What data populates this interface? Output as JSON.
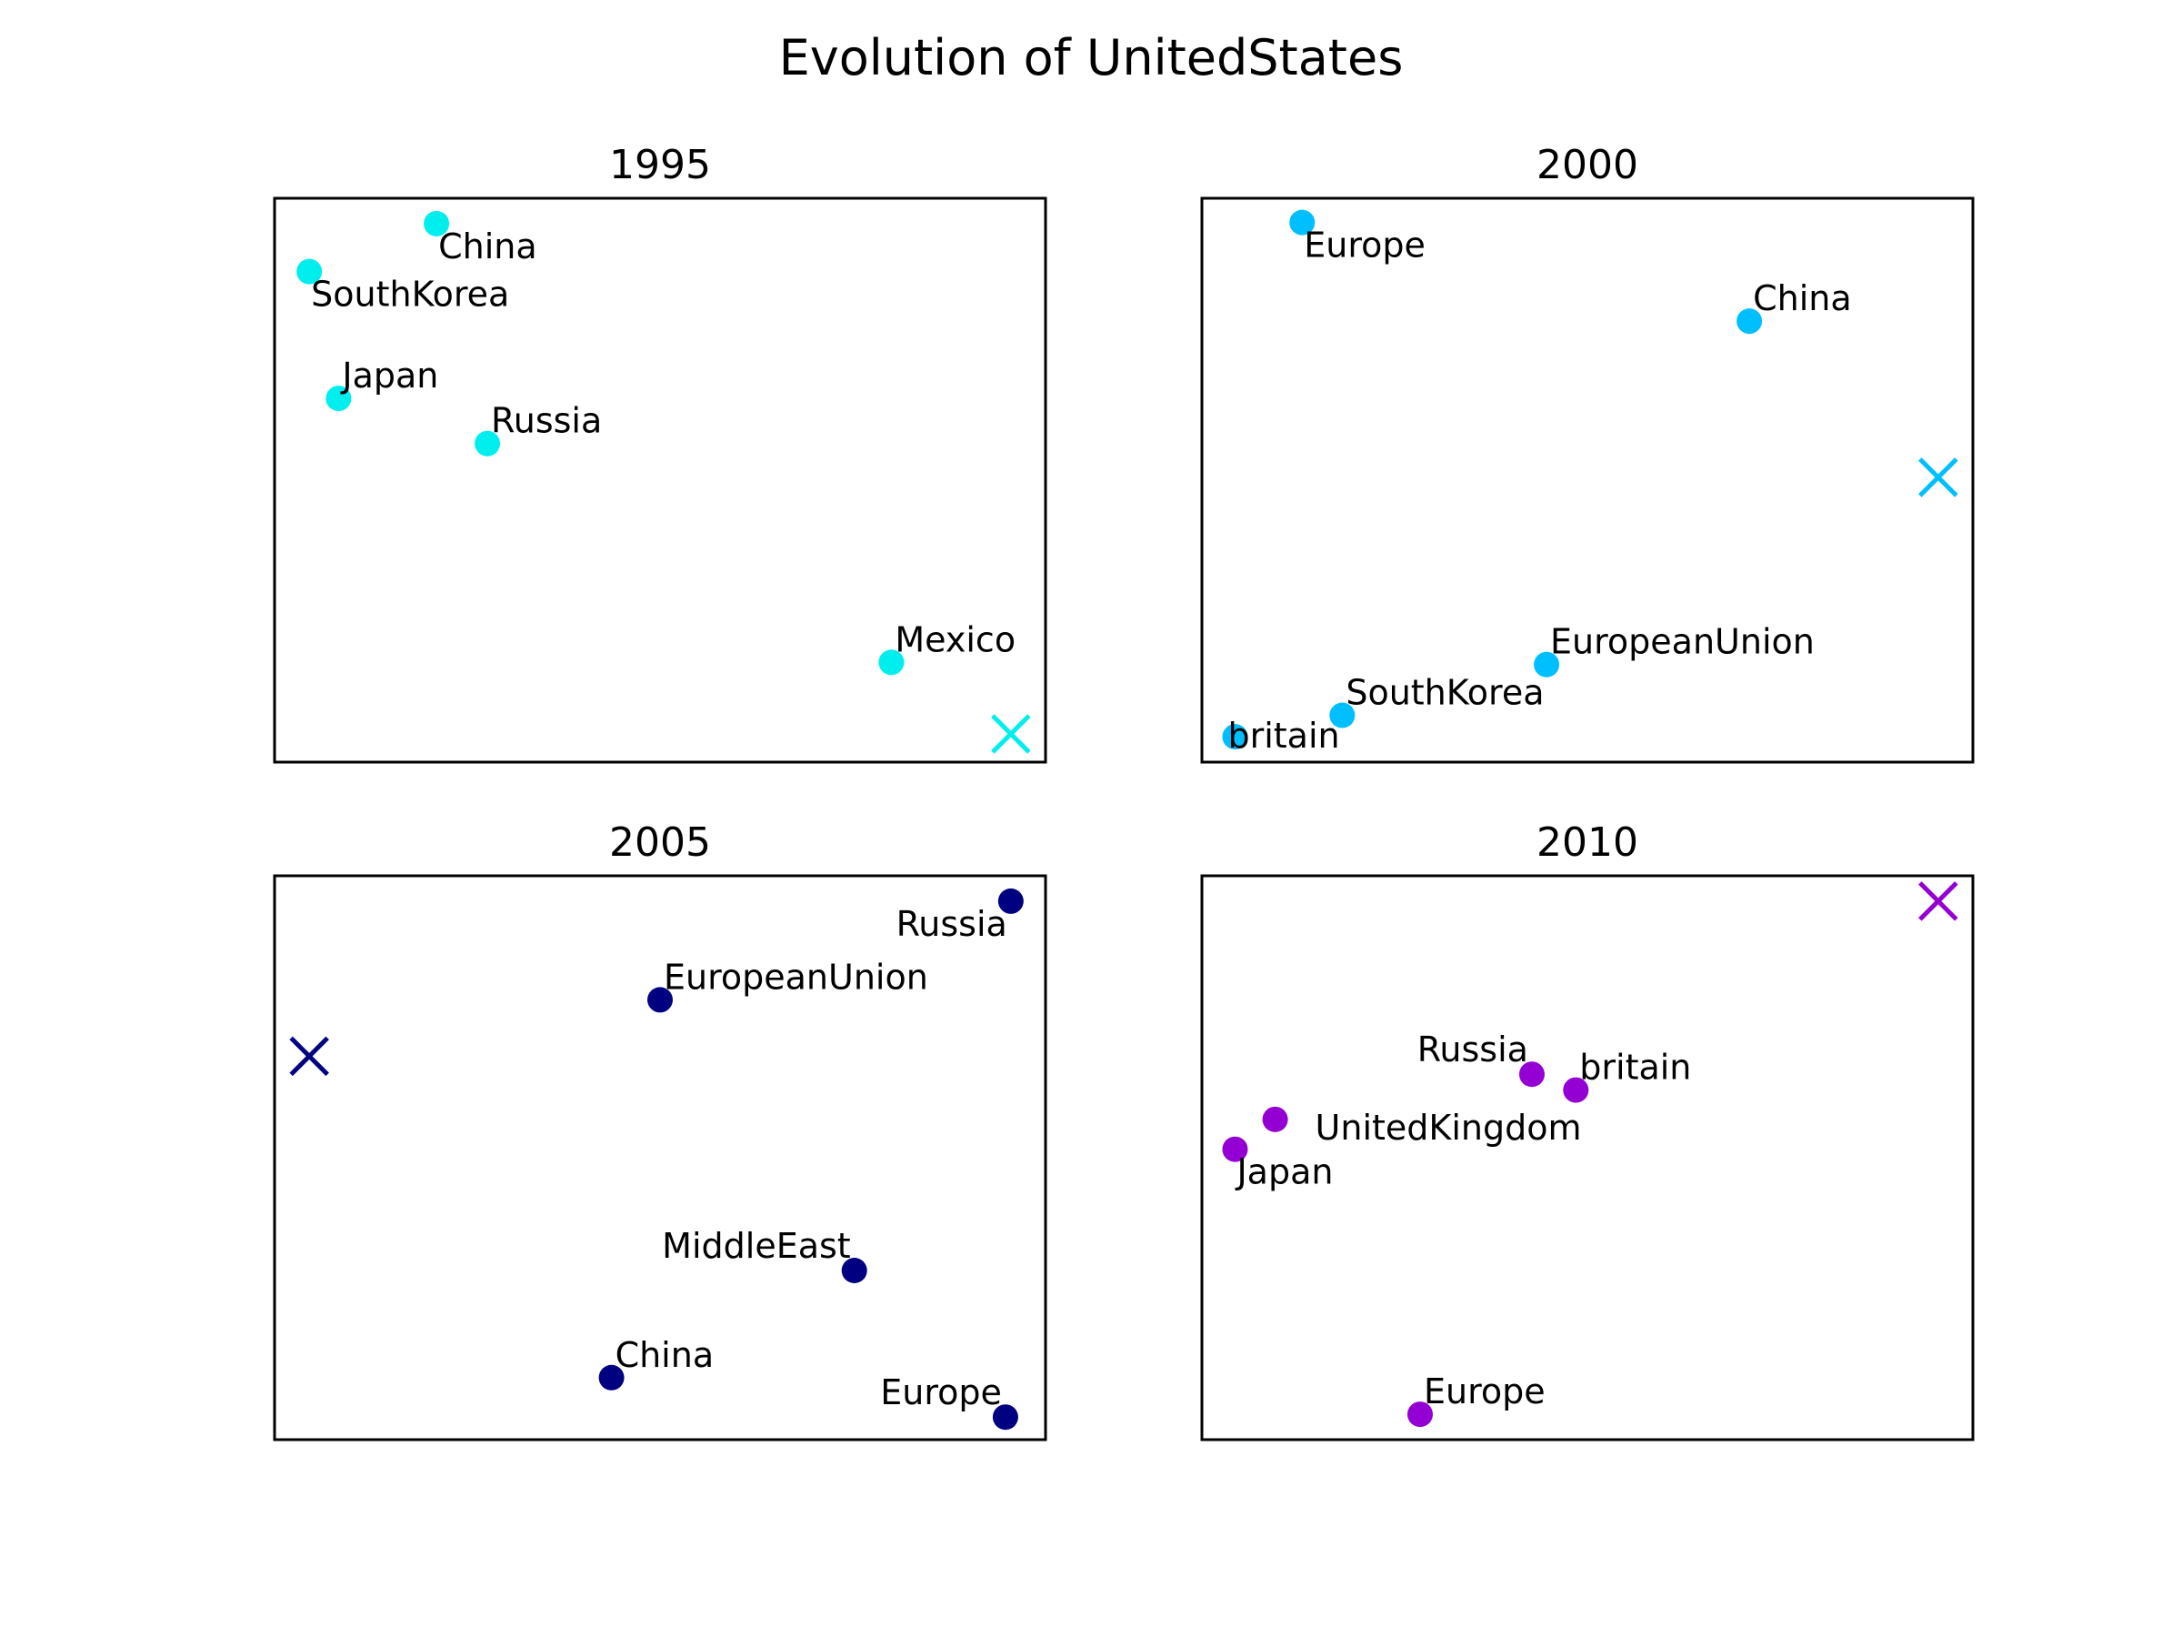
{
  "chart_data": {
    "type": "scatter",
    "title": "Evolution of UnitedStates",
    "panels": [
      {
        "title": "1995",
        "color": "#00eeee",
        "xlim": [
          0,
          1
        ],
        "ylim": [
          0,
          1
        ],
        "points": [
          {
            "label": "China",
            "x": 0.21,
            "y": 0.955,
            "anchor": "below-right"
          },
          {
            "label": "SouthKorea",
            "x": 0.045,
            "y": 0.87,
            "anchor": "below-right"
          },
          {
            "label": "Japan",
            "x": 0.083,
            "y": 0.645,
            "anchor": "above-right"
          },
          {
            "label": "Russia",
            "x": 0.276,
            "y": 0.565,
            "anchor": "above-right"
          },
          {
            "label": "Mexico",
            "x": 0.8,
            "y": 0.177,
            "anchor": "above-right"
          }
        ],
        "target": {
          "x": 0.955,
          "y": 0.05
        }
      },
      {
        "title": "2000",
        "color": "#00bfff",
        "xlim": [
          0,
          1
        ],
        "ylim": [
          0,
          1
        ],
        "points": [
          {
            "label": "Europe",
            "x": 0.13,
            "y": 0.957,
            "anchor": "below-right"
          },
          {
            "label": "China",
            "x": 0.71,
            "y": 0.782,
            "anchor": "above-right"
          },
          {
            "label": "EuropeanUnion",
            "x": 0.447,
            "y": 0.173,
            "anchor": "above-right"
          },
          {
            "label": "SouthKorea",
            "x": 0.182,
            "y": 0.083,
            "anchor": "above-right"
          },
          {
            "label": "britain",
            "x": 0.043,
            "y": 0.045,
            "anchor": "center-right"
          }
        ],
        "target": {
          "x": 0.955,
          "y": 0.505
        }
      },
      {
        "title": "2005",
        "color": "#000080",
        "xlim": [
          0,
          1
        ],
        "ylim": [
          0,
          1
        ],
        "points": [
          {
            "label": "Russia",
            "x": 0.955,
            "y": 0.955,
            "anchor": "below-left"
          },
          {
            "label": "EuropeanUnion",
            "x": 0.5,
            "y": 0.78,
            "anchor": "above-right"
          },
          {
            "label": "MiddleEast",
            "x": 0.752,
            "y": 0.3,
            "anchor": "above-left"
          },
          {
            "label": "China",
            "x": 0.437,
            "y": 0.11,
            "anchor": "above-right"
          },
          {
            "label": "Europe",
            "x": 0.948,
            "y": 0.04,
            "anchor": "above-left"
          }
        ],
        "target": {
          "x": 0.045,
          "y": 0.68
        }
      },
      {
        "title": "2010",
        "color": "#9400d3",
        "xlim": [
          0,
          1
        ],
        "ylim": [
          0,
          1
        ],
        "points": [
          {
            "label": "Russia",
            "x": 0.428,
            "y": 0.648,
            "anchor": "above-left"
          },
          {
            "label": "britain",
            "x": 0.485,
            "y": 0.62,
            "anchor": "above-right"
          },
          {
            "label": "UnitedKingdom",
            "x": 0.095,
            "y": 0.568,
            "anchor": "below-right-far"
          },
          {
            "label": "Japan",
            "x": 0.043,
            "y": 0.515,
            "anchor": "below-right"
          },
          {
            "label": "Europe",
            "x": 0.283,
            "y": 0.045,
            "anchor": "above-right"
          }
        ],
        "target": {
          "x": 0.955,
          "y": 0.955
        }
      }
    ]
  }
}
